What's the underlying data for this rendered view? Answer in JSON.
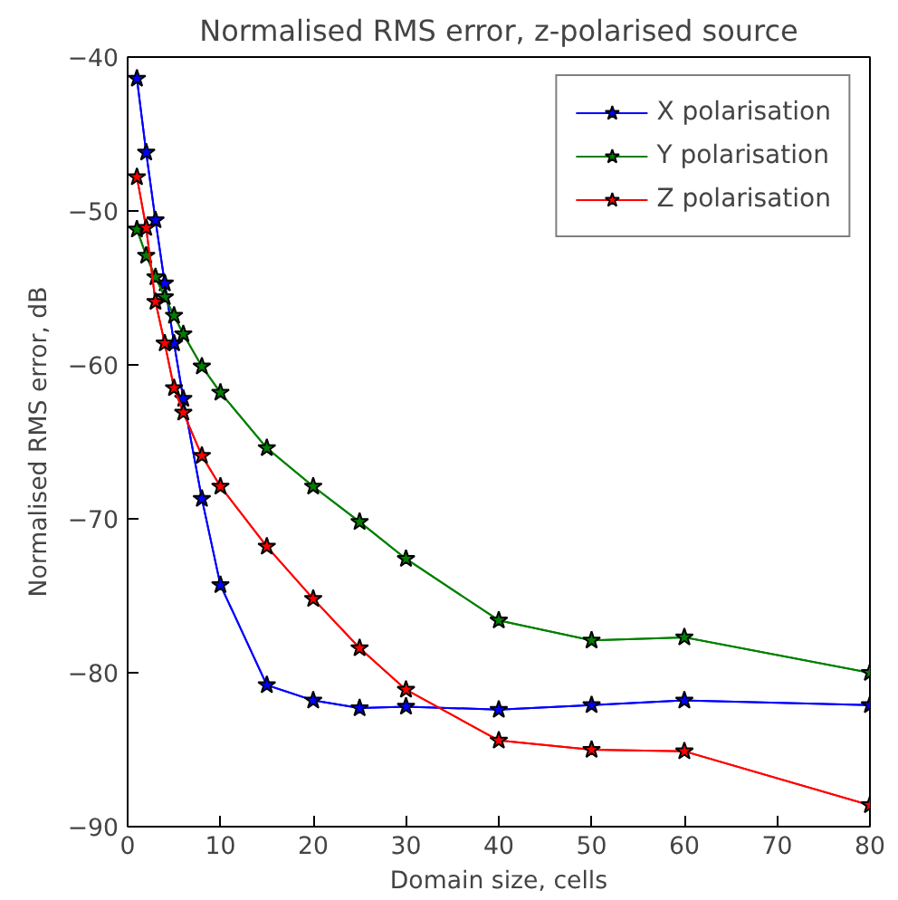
{
  "chart_data": {
    "type": "line",
    "title": "Normalised RMS error, z-polarised source",
    "xlabel": "Domain size, cells",
    "ylabel": "Normalised RMS error, dB",
    "x": [
      1,
      2,
      3,
      4,
      5,
      6,
      8,
      10,
      15,
      20,
      25,
      30,
      40,
      50,
      60,
      80
    ],
    "series": [
      {
        "name": "X polarisation",
        "color": "#0000ff",
        "values": [
          -41.4,
          -46.2,
          -50.6,
          -54.7,
          -58.6,
          -62.2,
          -68.7,
          -74.3,
          -80.8,
          -81.8,
          -82.3,
          -82.2,
          -82.4,
          -82.1,
          -81.8,
          -82.1
        ]
      },
      {
        "name": "Y polarisation",
        "color": "#008000",
        "values": [
          -51.2,
          -52.9,
          -54.3,
          -55.6,
          -56.8,
          -58.0,
          -60.1,
          -61.8,
          -65.4,
          -67.9,
          -70.2,
          -72.6,
          -76.6,
          -77.9,
          -77.7,
          -80.0
        ]
      },
      {
        "name": "Z polarisation",
        "color": "#ff0000",
        "values": [
          -47.8,
          -51.1,
          -55.9,
          -58.6,
          -61.5,
          -63.1,
          -65.9,
          -67.9,
          -71.8,
          -75.2,
          -78.4,
          -81.1,
          -84.4,
          -85.0,
          -85.1,
          -88.6
        ]
      }
    ],
    "xlim": [
      0,
      80
    ],
    "xticks": [
      0,
      10,
      20,
      30,
      40,
      50,
      60,
      70,
      80
    ],
    "ylim": [
      -90,
      -40
    ],
    "yticks": [
      -90,
      -80,
      -70,
      -60,
      -50,
      -40
    ],
    "grid": false,
    "legend": "top right",
    "marker": "star",
    "line_style": "solid"
  }
}
